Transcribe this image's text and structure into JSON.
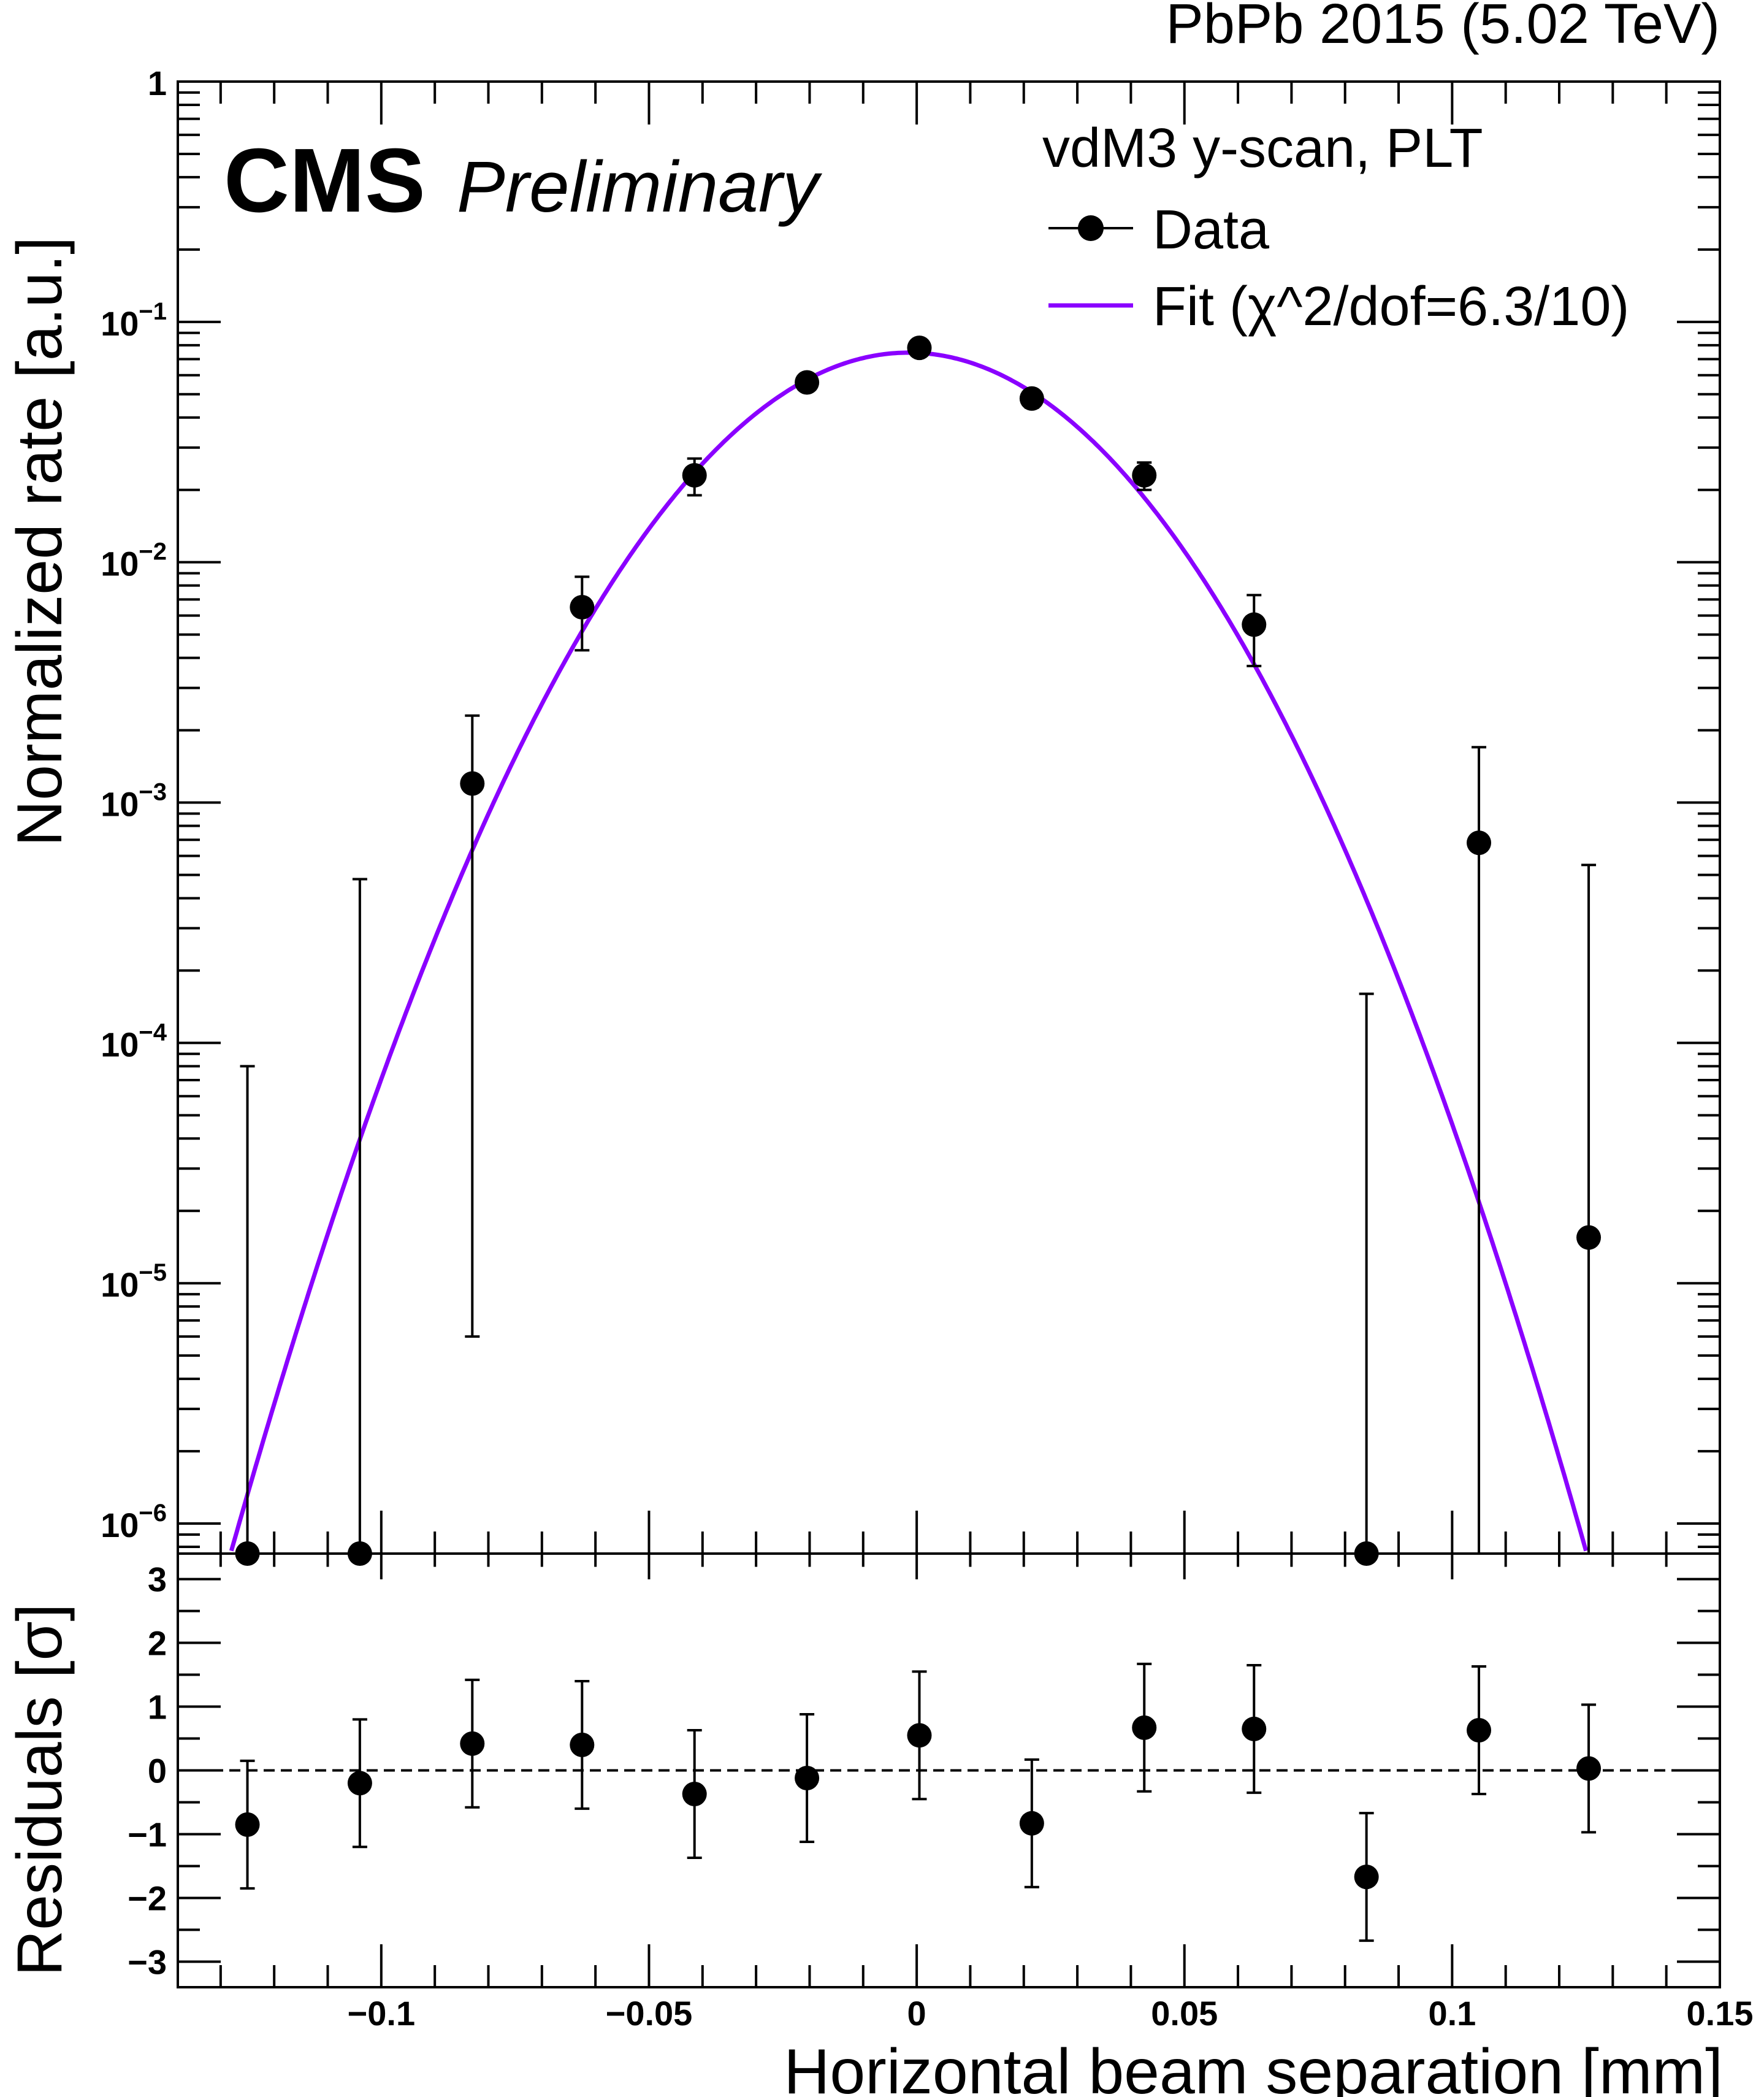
{
  "header": {
    "energy_label": "PbPb 2015 (5.02 TeV)",
    "experiment": "CMS",
    "status": "Preliminary"
  },
  "legend": {
    "header": "vdM3 y-scan, PLT",
    "data_label": "Data",
    "fit_label": "Fit (χ^2/dof=6.3/10)"
  },
  "colors": {
    "fit": "#8a00ff",
    "data": "#000000"
  },
  "chart_data": [
    {
      "type": "scatter",
      "panel": "main",
      "ylabel": "Normalized rate [a.u.]",
      "y_scale": "log",
      "ylim": [
        7.5e-07,
        1
      ],
      "xlim": [
        -0.138,
        0.15
      ],
      "y_ticks": [
        {
          "value": 1,
          "base": "1",
          "exp": ""
        },
        {
          "value": 0.1,
          "base": "10",
          "exp": "−1"
        },
        {
          "value": 0.01,
          "base": "10",
          "exp": "−2"
        },
        {
          "value": 0.001,
          "base": "10",
          "exp": "−3"
        },
        {
          "value": 0.0001,
          "base": "10",
          "exp": "−4"
        },
        {
          "value": 1e-05,
          "base": "10",
          "exp": "−5"
        },
        {
          "value": 1e-06,
          "base": "10",
          "exp": "−6"
        }
      ],
      "series": [
        {
          "name": "Data",
          "points": [
            {
              "x": -0.125,
              "y": 7.5e-07,
              "yerr_low": 0,
              "yerr_high": 8e-05
            },
            {
              "x": -0.104,
              "y": 7.5e-07,
              "yerr_low": 0,
              "yerr_high": 0.00048
            },
            {
              "x": -0.083,
              "y": 0.0012,
              "yerr_low": 6e-06,
              "yerr_high": 0.0023
            },
            {
              "x": -0.0625,
              "y": 0.0065,
              "yerr_low": 0.0043,
              "yerr_high": 0.0087
            },
            {
              "x": -0.0415,
              "y": 0.023,
              "yerr_low": 0.019,
              "yerr_high": 0.027
            },
            {
              "x": -0.0205,
              "y": 0.056,
              "yerr_low": 0.052,
              "yerr_high": 0.06
            },
            {
              "x": 0.0005,
              "y": 0.078,
              "yerr_low": 0.074,
              "yerr_high": 0.082
            },
            {
              "x": 0.0215,
              "y": 0.048,
              "yerr_low": 0.044,
              "yerr_high": 0.052
            },
            {
              "x": 0.0425,
              "y": 0.023,
              "yerr_low": 0.02,
              "yerr_high": 0.026
            },
            {
              "x": 0.063,
              "y": 0.0055,
              "yerr_low": 0.0037,
              "yerr_high": 0.0073
            },
            {
              "x": 0.084,
              "y": 7.5e-07,
              "yerr_low": 0,
              "yerr_high": 0.00016
            },
            {
              "x": 0.105,
              "y": 0.00068,
              "yerr_low": 7.5e-07,
              "yerr_high": 0.0017
            },
            {
              "x": 0.1255,
              "y": 1.55e-05,
              "yerr_low": 7.5e-07,
              "yerr_high": 0.00055
            }
          ]
        },
        {
          "name": "Fit (χ^2/dof=6.3/10)",
          "model": "gaussian",
          "amplitude": 0.0745,
          "mean": -0.0015,
          "sigma": 0.0264
        }
      ]
    },
    {
      "type": "scatter",
      "panel": "residuals",
      "xlabel": "Horizontal beam separation [mm]",
      "ylabel": "Residuals [σ]",
      "xlim": [
        -0.138,
        0.15
      ],
      "ylim": [
        -3.4,
        3.4
      ],
      "x_ticks": [
        {
          "value": -0.1,
          "label": "−0.1"
        },
        {
          "value": -0.05,
          "label": "−0.05"
        },
        {
          "value": 0,
          "label": "0"
        },
        {
          "value": 0.05,
          "label": "0.05"
        },
        {
          "value": 0.1,
          "label": "0.1"
        },
        {
          "value": 0.15,
          "label": "0.15"
        }
      ],
      "y_ticks": [
        {
          "value": 3,
          "label": "3"
        },
        {
          "value": 2,
          "label": "2"
        },
        {
          "value": 1,
          "label": "1"
        },
        {
          "value": 0,
          "label": "0"
        },
        {
          "value": -1,
          "label": "−1"
        },
        {
          "value": -2,
          "label": "−2"
        },
        {
          "value": -3,
          "label": "−3"
        }
      ],
      "reference_line": 0,
      "series": [
        {
          "name": "Residuals",
          "points": [
            {
              "x": -0.125,
              "y": -0.85,
              "yerr": 1.0
            },
            {
              "x": -0.104,
              "y": -0.2,
              "yerr": 1.0
            },
            {
              "x": -0.083,
              "y": 0.42,
              "yerr": 1.0
            },
            {
              "x": -0.0625,
              "y": 0.4,
              "yerr": 1.0
            },
            {
              "x": -0.0415,
              "y": -0.37,
              "yerr": 1.0
            },
            {
              "x": -0.0205,
              "y": -0.12,
              "yerr": 1.0
            },
            {
              "x": 0.0005,
              "y": 0.55,
              "yerr": 1.0
            },
            {
              "x": 0.0215,
              "y": -0.83,
              "yerr": 1.0
            },
            {
              "x": 0.0425,
              "y": 0.67,
              "yerr": 1.0
            },
            {
              "x": 0.063,
              "y": 0.65,
              "yerr": 1.0
            },
            {
              "x": 0.084,
              "y": -1.67,
              "yerr": 1.0
            },
            {
              "x": 0.105,
              "y": 0.63,
              "yerr": 1.0
            },
            {
              "x": 0.1255,
              "y": 0.03,
              "yerr": 1.0
            }
          ]
        }
      ]
    }
  ]
}
